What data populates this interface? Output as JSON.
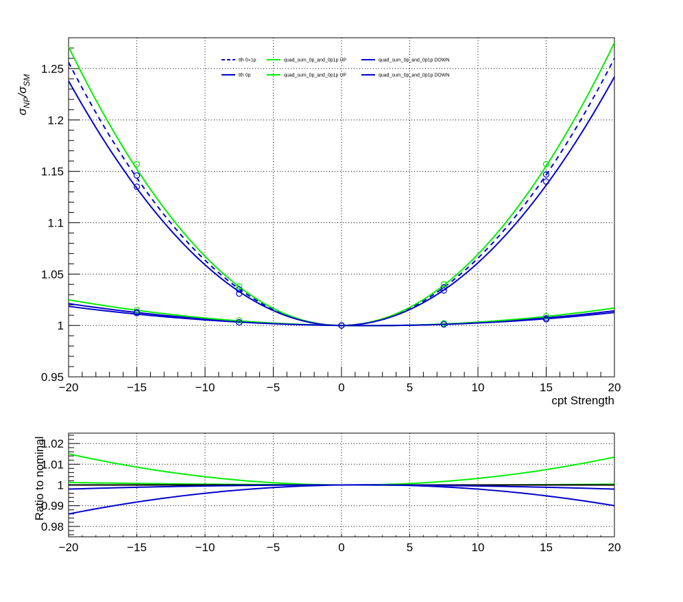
{
  "chart_data": [
    {
      "type": "line",
      "ylabel_main": "σ",
      "ylabel_sub_np": "NP",
      "ylabel_sep": "/σ",
      "ylabel_sub_sm": "SM",
      "xlabel": "cpt Strength",
      "xlim": [
        -20,
        20
      ],
      "ylim": [
        0.95,
        1.28
      ],
      "grid": true,
      "legend_placement": "top-center",
      "x_ticks": [
        -20,
        -15,
        -10,
        -5,
        0,
        5,
        10,
        15,
        20
      ],
      "x_tick_labels": [
        "−20",
        "−15",
        "−10",
        "−5",
        "0",
        "5",
        "10",
        "15",
        "20"
      ],
      "y_ticks": [
        0.95,
        1.0,
        1.05,
        1.1,
        1.15,
        1.2,
        1.25
      ],
      "y_tick_labels": [
        "0.95",
        "1",
        "1.05",
        "1.1",
        "1.15",
        "1.2",
        "1.25"
      ],
      "legend": [
        {
          "label": "tth 0+1p",
          "color": "#0000cc",
          "dashed": true
        },
        {
          "label": "quad_sum_0p_and_0p1p UP",
          "color": "#00ee00",
          "dashed": false
        },
        {
          "label": "quad_sum_0p_and_0p1p DOWN",
          "color": "#0000cc",
          "dashed": false
        },
        {
          "label": "tth 0p",
          "color": "#0000cc",
          "dashed": false
        },
        {
          "label": "quad_sum_0p_and_0p1p UP",
          "color": "#00ee00",
          "dashed": false
        },
        {
          "label": "quad_sum_0p_and_0p1p DOWN",
          "color": "#0000cc",
          "dashed": false
        }
      ],
      "series": [
        {
          "name": "tth 0+1p",
          "color": "#0000cc",
          "dashed": true,
          "linear": 0.0001,
          "quad": 0.000645,
          "points": [
            {
              "x": -15,
              "y": 1.146
            },
            {
              "x": -7.5,
              "y": 1.035
            },
            {
              "x": 0,
              "y": 1.0
            },
            {
              "x": 7.5,
              "y": 1.037
            },
            {
              "x": 15,
              "y": 1.147
            }
          ]
        },
        {
          "name": "quad_sum_0p_and_0p1p UP",
          "color": "#00ee00",
          "dashed": false,
          "linear": 0.0001,
          "quad": 0.000683,
          "points": [
            {
              "x": -15,
              "y": 1.157
            },
            {
              "x": -7.5,
              "y": 1.038
            },
            {
              "x": 0,
              "y": 1.0
            },
            {
              "x": 7.5,
              "y": 1.04
            },
            {
              "x": 15,
              "y": 1.157
            }
          ]
        },
        {
          "name": "quad_sum_0p_and_0p1p DOWN",
          "color": "#0000cc",
          "dashed": false,
          "linear": 0.0001,
          "quad": 0.0006,
          "points": [
            {
              "x": -15,
              "y": 1.135
            },
            {
              "x": -7.5,
              "y": 1.031
            },
            {
              "x": 0,
              "y": 1.0
            },
            {
              "x": 7.5,
              "y": 1.034
            },
            {
              "x": 15,
              "y": 1.14
            }
          ]
        },
        {
          "name": "tth 0p",
          "color": "#0000cc",
          "dashed": false,
          "linear": -0.000175,
          "quad": 4.45e-05,
          "points": [
            {
              "x": -15,
              "y": 1.013
            },
            {
              "x": -7.5,
              "y": 1.003
            },
            {
              "x": 0,
              "y": 1.0
            },
            {
              "x": 7.5,
              "y": 1.002
            },
            {
              "x": 15,
              "y": 1.007
            }
          ]
        },
        {
          "name": "quad_sum_0p_and_0p1p UP",
          "color": "#00ee00",
          "dashed": false,
          "linear": -0.0002,
          "quad": 5.25e-05,
          "points": [
            {
              "x": -15,
              "y": 1.015
            },
            {
              "x": -7.5,
              "y": 1.005
            },
            {
              "x": 0,
              "y": 1.0
            },
            {
              "x": 7.5,
              "y": 1.002
            },
            {
              "x": 15,
              "y": 1.009
            }
          ]
        },
        {
          "name": "quad_sum_0p_and_0p1p DOWN",
          "color": "#0000cc",
          "dashed": false,
          "linear": -0.00015,
          "quad": 3.9e-05,
          "points": [
            {
              "x": -15,
              "y": 1.012
            },
            {
              "x": -7.5,
              "y": 1.003
            },
            {
              "x": 0,
              "y": 1.0
            },
            {
              "x": 7.5,
              "y": 1.001
            },
            {
              "x": 15,
              "y": 1.006
            }
          ]
        }
      ]
    },
    {
      "type": "line",
      "ylabel": "Ratio to nominal",
      "xlim": [
        -20,
        20
      ],
      "ylim": [
        0.975,
        1.025
      ],
      "grid": true,
      "x_ticks": [
        -20,
        -15,
        -10,
        -5,
        0,
        5,
        10,
        15,
        20
      ],
      "x_tick_labels": [
        "−20",
        "−15",
        "−10",
        "−5",
        "0",
        "5",
        "10",
        "15",
        "20"
      ],
      "y_ticks": [
        0.98,
        0.99,
        1.0,
        1.01,
        1.02
      ],
      "y_tick_labels": [
        "0.98",
        "0.99",
        "1",
        "1.01",
        "1.02"
      ],
      "series": [
        {
          "color": "#00ee00",
          "linear": -4e-05,
          "quad": 3.56e-05
        },
        {
          "color": "#00ee00",
          "linear": -2e-05,
          "quad": 2e-06
        },
        {
          "color": "#000000",
          "linear": 0.0,
          "quad": 0.0
        },
        {
          "color": "#0000cc",
          "linear": 0.0,
          "quad": -5e-06
        },
        {
          "color": "#0000cc",
          "linear": 0.0001,
          "quad": -3e-05
        }
      ]
    }
  ]
}
